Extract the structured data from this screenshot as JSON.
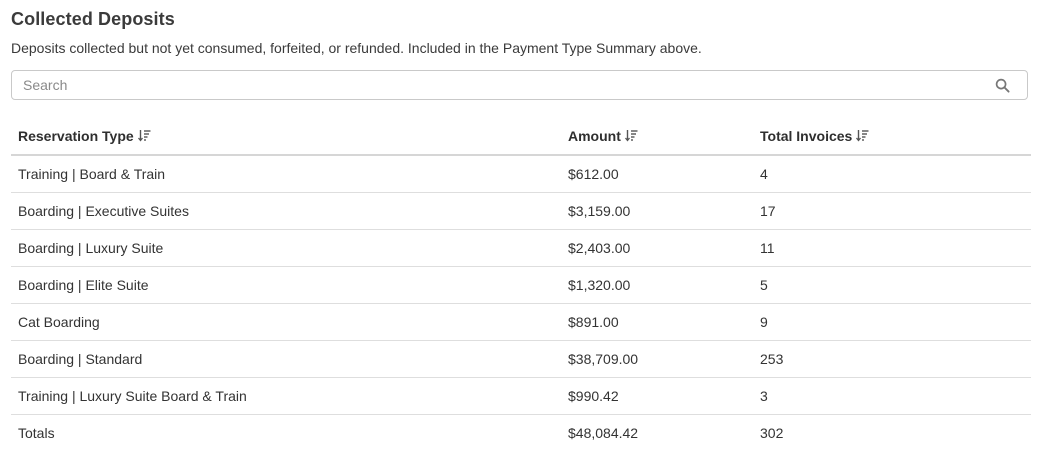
{
  "section": {
    "title": "Collected Deposits",
    "description": "Deposits collected but not yet consumed, forfeited, or refunded. Included in the Payment Type Summary above."
  },
  "search": {
    "placeholder": "Search",
    "value": "",
    "icon": "search-icon"
  },
  "table": {
    "columns": [
      {
        "label": "Reservation Type",
        "sort_icon": "sort-descending-icon"
      },
      {
        "label": "Amount",
        "sort_icon": "sort-descending-icon"
      },
      {
        "label": "Total Invoices",
        "sort_icon": "sort-descending-icon"
      }
    ],
    "rows": [
      {
        "type": "Training | Board & Train",
        "amount": "$612.00",
        "invoices": "4"
      },
      {
        "type": "Boarding | Executive Suites",
        "amount": "$3,159.00",
        "invoices": "17"
      },
      {
        "type": "Boarding | Luxury Suite",
        "amount": "$2,403.00",
        "invoices": "11"
      },
      {
        "type": "Boarding | Elite Suite",
        "amount": "$1,320.00",
        "invoices": "5"
      },
      {
        "type": "Cat Boarding",
        "amount": "$891.00",
        "invoices": "9"
      },
      {
        "type": "Boarding | Standard",
        "amount": "$38,709.00",
        "invoices": "253"
      },
      {
        "type": "Training | Luxury Suite Board & Train",
        "amount": "$990.42",
        "invoices": "3"
      }
    ],
    "totals": {
      "label": "Totals",
      "amount": "$48,084.42",
      "invoices": "302"
    }
  }
}
